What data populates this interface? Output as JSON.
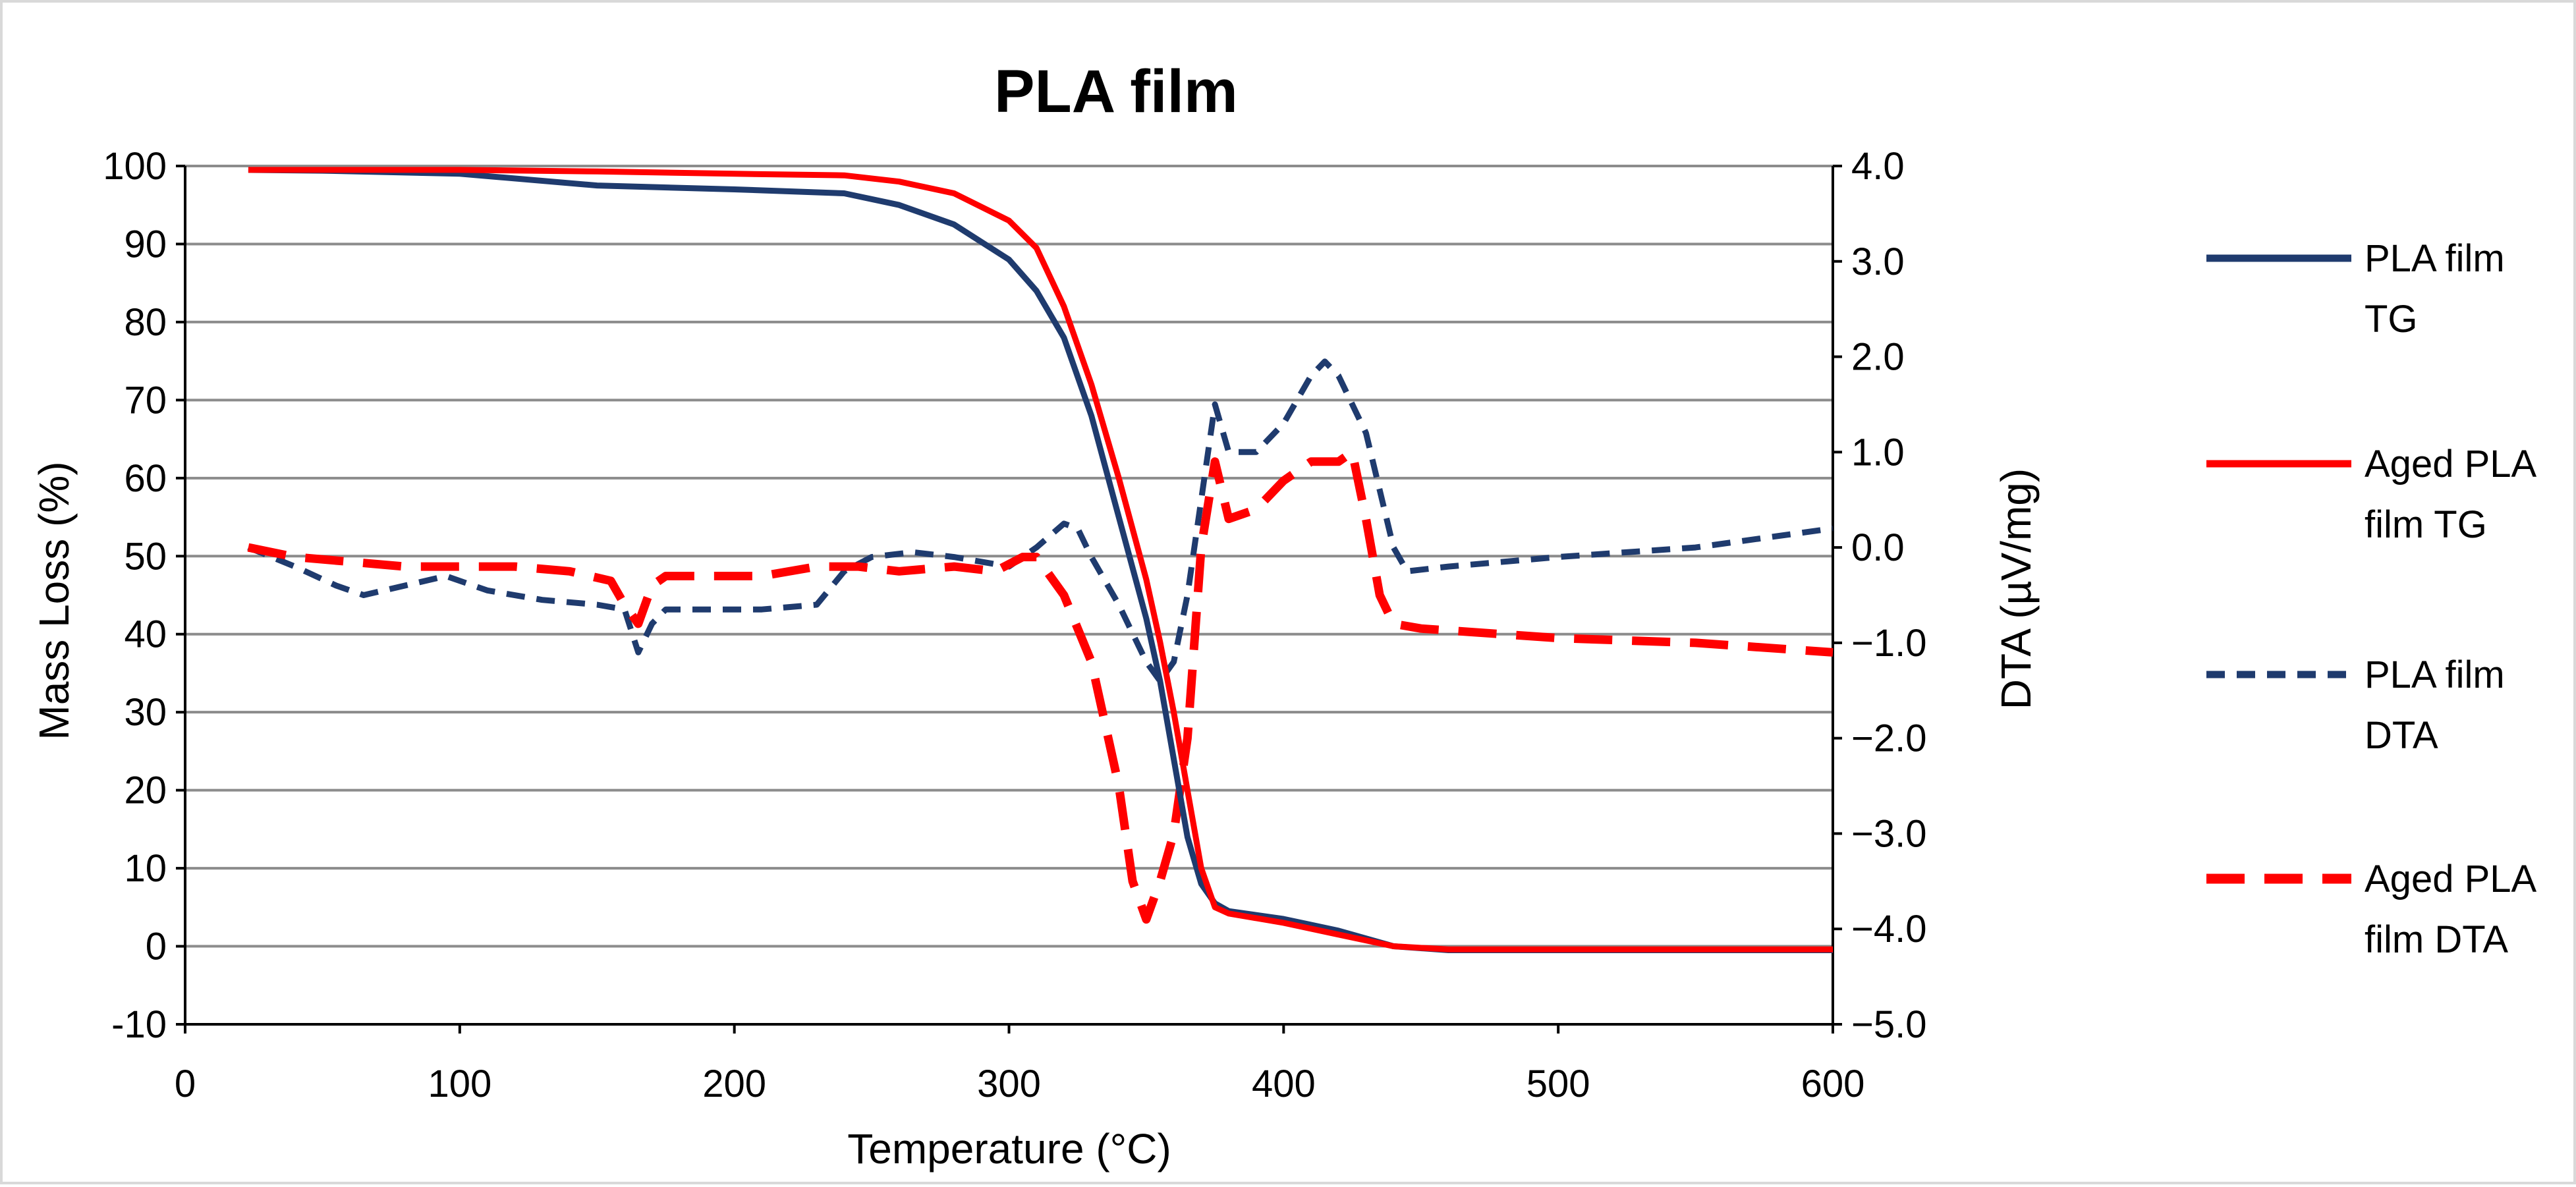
{
  "chart_data": {
    "type": "line",
    "title": "PLA film",
    "xlabel": "Temperature (°C)",
    "ylabel": "Mass Loss (%)",
    "y2label": "DTA (µV/mg)",
    "xlim": [
      0,
      600
    ],
    "ylim": [
      -10,
      100
    ],
    "y2lim": [
      -5.0,
      4.0
    ],
    "x_ticks": [
      "0",
      "100",
      "200",
      "300",
      "400",
      "500",
      "600"
    ],
    "y_ticks": [
      "-10",
      "0",
      "10",
      "20",
      "30",
      "40",
      "50",
      "60",
      "70",
      "80",
      "90",
      "100"
    ],
    "y2_ticks": [
      "-5.0",
      "-4.0",
      "-3.0",
      "-2.0",
      "-1.0",
      "0.0",
      "1.0",
      "2.0",
      "3.0",
      "4.0"
    ],
    "grid": true,
    "legend_position": "right",
    "series": [
      {
        "name": "PLA film TG",
        "legend_lines": [
          "PLA film",
          "TG"
        ],
        "axis": "left",
        "color": "#1f3b6e",
        "style": "solid",
        "x": [
          23,
          50,
          100,
          150,
          200,
          240,
          260,
          280,
          300,
          310,
          320,
          330,
          340,
          350,
          355,
          360,
          365,
          370,
          375,
          380,
          400,
          420,
          440,
          460,
          500,
          550,
          600
        ],
        "y": [
          99.5,
          99.4,
          99.0,
          97.5,
          97.0,
          96.5,
          95.0,
          92.5,
          88.0,
          84.0,
          78.0,
          68.0,
          55.0,
          42.0,
          34.0,
          24.0,
          14.0,
          8.0,
          5.5,
          4.5,
          3.5,
          2.0,
          0.0,
          -0.5,
          -0.5,
          -0.5,
          -0.5
        ]
      },
      {
        "name": "Aged PLA film TG",
        "legend_lines": [
          "Aged PLA",
          "film TG"
        ],
        "axis": "left",
        "color": "#ff0000",
        "style": "solid",
        "x": [
          23,
          50,
          100,
          150,
          200,
          240,
          260,
          280,
          300,
          310,
          320,
          330,
          340,
          350,
          355,
          360,
          365,
          370,
          375,
          380,
          400,
          420,
          440,
          460,
          500,
          550,
          600
        ],
        "y": [
          99.5,
          99.5,
          99.5,
          99.3,
          99.0,
          98.8,
          98.0,
          96.5,
          93.0,
          89.5,
          82.0,
          72.0,
          60.0,
          47.0,
          39.0,
          30.0,
          20.0,
          10.0,
          5.0,
          4.2,
          3.0,
          1.5,
          0.0,
          -0.4,
          -0.4,
          -0.4,
          -0.4
        ]
      },
      {
        "name": "PLA film DTA",
        "legend_lines": [
          "PLA film",
          "DTA"
        ],
        "axis": "right",
        "color": "#1f3b6e",
        "style": "dash-short",
        "x": [
          23,
          40,
          55,
          65,
          80,
          95,
          110,
          130,
          150,
          160,
          165,
          170,
          175,
          190,
          210,
          230,
          240,
          250,
          265,
          280,
          300,
          310,
          320,
          325,
          330,
          340,
          350,
          355,
          360,
          365,
          370,
          375,
          380,
          390,
          400,
          410,
          415,
          420,
          430,
          440,
          445,
          460,
          500,
          550,
          600
        ],
        "y": [
          0.0,
          -0.2,
          -0.4,
          -0.5,
          -0.4,
          -0.3,
          -0.45,
          -0.55,
          -0.6,
          -0.65,
          -1.1,
          -0.8,
          -0.65,
          -0.65,
          -0.65,
          -0.6,
          -0.25,
          -0.1,
          -0.05,
          -0.1,
          -0.2,
          0.0,
          0.25,
          0.2,
          -0.1,
          -0.6,
          -1.2,
          -1.4,
          -1.2,
          -0.5,
          0.5,
          1.5,
          1.0,
          1.0,
          1.3,
          1.8,
          1.95,
          1.8,
          1.2,
          0.0,
          -0.25,
          -0.2,
          -0.1,
          0.0,
          0.2
        ]
      },
      {
        "name": "Aged PLA film DTA",
        "legend_lines": [
          "Aged PLA",
          "film DTA"
        ],
        "axis": "right",
        "color": "#ff0000",
        "style": "dash-long",
        "x": [
          23,
          40,
          60,
          80,
          100,
          120,
          140,
          155,
          160,
          165,
          170,
          175,
          190,
          210,
          230,
          245,
          260,
          280,
          295,
          305,
          310,
          320,
          330,
          340,
          345,
          350,
          355,
          360,
          365,
          370,
          375,
          380,
          390,
          400,
          410,
          420,
          425,
          430,
          435,
          440,
          450,
          500,
          550,
          600
        ],
        "y": [
          0.0,
          -0.1,
          -0.15,
          -0.2,
          -0.2,
          -0.2,
          -0.25,
          -0.35,
          -0.6,
          -0.8,
          -0.4,
          -0.3,
          -0.3,
          -0.3,
          -0.2,
          -0.2,
          -0.25,
          -0.2,
          -0.25,
          -0.1,
          -0.1,
          -0.5,
          -1.2,
          -2.5,
          -3.5,
          -3.9,
          -3.5,
          -3.0,
          -2.0,
          0.0,
          0.9,
          0.3,
          0.4,
          0.7,
          0.9,
          0.9,
          1.0,
          0.3,
          -0.5,
          -0.8,
          -0.85,
          -0.95,
          -1.0,
          -1.1
        ]
      }
    ]
  }
}
